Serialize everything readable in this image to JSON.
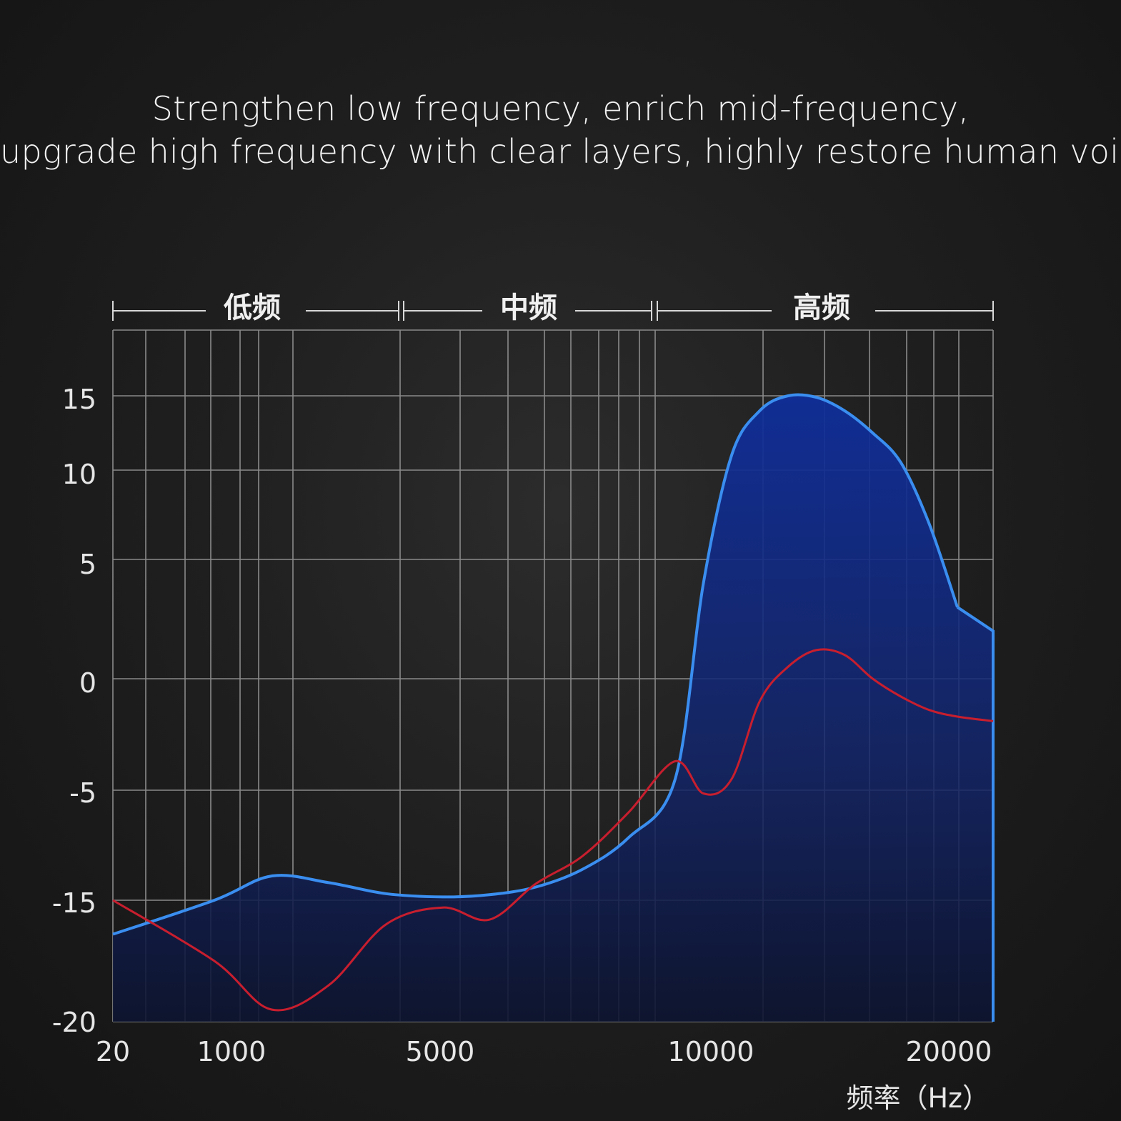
{
  "headline": {
    "line1": "Strengthen low frequency, enrich mid-frequency,",
    "line2": "upgrade high frequency with clear layers, highly restore human voice"
  },
  "colors": {
    "background": "#1f1f1f",
    "grid": "#8a8a8a",
    "blue_line": "#3a8ef0",
    "blue_fill_top": "#0f2e9a",
    "blue_fill_bottom": "#0d1430",
    "red_line": "#c81e2e"
  },
  "chart_data": {
    "type": "area",
    "title": "",
    "xlabel": "频率（Hz）",
    "ylabel": "",
    "x_ticks": [
      "20",
      "1000",
      "5000",
      "10000",
      "20000"
    ],
    "y_ticks": [
      "15",
      "10",
      "5",
      "0",
      "-5",
      "-15",
      "-20"
    ],
    "ylim": [
      -20,
      15
    ],
    "grid": true,
    "bands": [
      "低频",
      "中频",
      "高频"
    ],
    "series": [
      {
        "name": "",
        "style": "filled-area",
        "color": "#3a8ef0",
        "x": [
          20,
          1000,
          2000,
          3000,
          4000,
          5000,
          6000,
          7000,
          8000,
          9000,
          10000,
          11000,
          12000,
          13000,
          14000,
          15000,
          16000,
          17000,
          18000,
          19000,
          20000,
          22000
        ],
        "y": [
          -16.4,
          -15,
          -12.8,
          -13.4,
          -14.4,
          -14.7,
          -14.5,
          -13.8,
          -12.2,
          -9.3,
          -4.5,
          4,
          11,
          14,
          15,
          14.9,
          14,
          12.5,
          10.5,
          7,
          3,
          -20
        ]
      },
      {
        "name": "",
        "style": "line",
        "color": "#c81e2e",
        "x": [
          20,
          1000,
          2000,
          3000,
          4000,
          5000,
          6000,
          7000,
          8000,
          9000,
          10000,
          11000,
          12000,
          13000,
          14000,
          15000,
          16000,
          17000,
          18000,
          19000,
          20000,
          22000
        ],
        "y": [
          -15,
          -17.5,
          -19.5,
          -18.5,
          -16,
          -15.3,
          -15.8,
          -13.5,
          -11,
          -7,
          -3.7,
          -5.3,
          -4.5,
          -1,
          0.5,
          1.2,
          1,
          0,
          -0.8,
          -1.4,
          -1.7,
          -1.9
        ]
      }
    ]
  }
}
